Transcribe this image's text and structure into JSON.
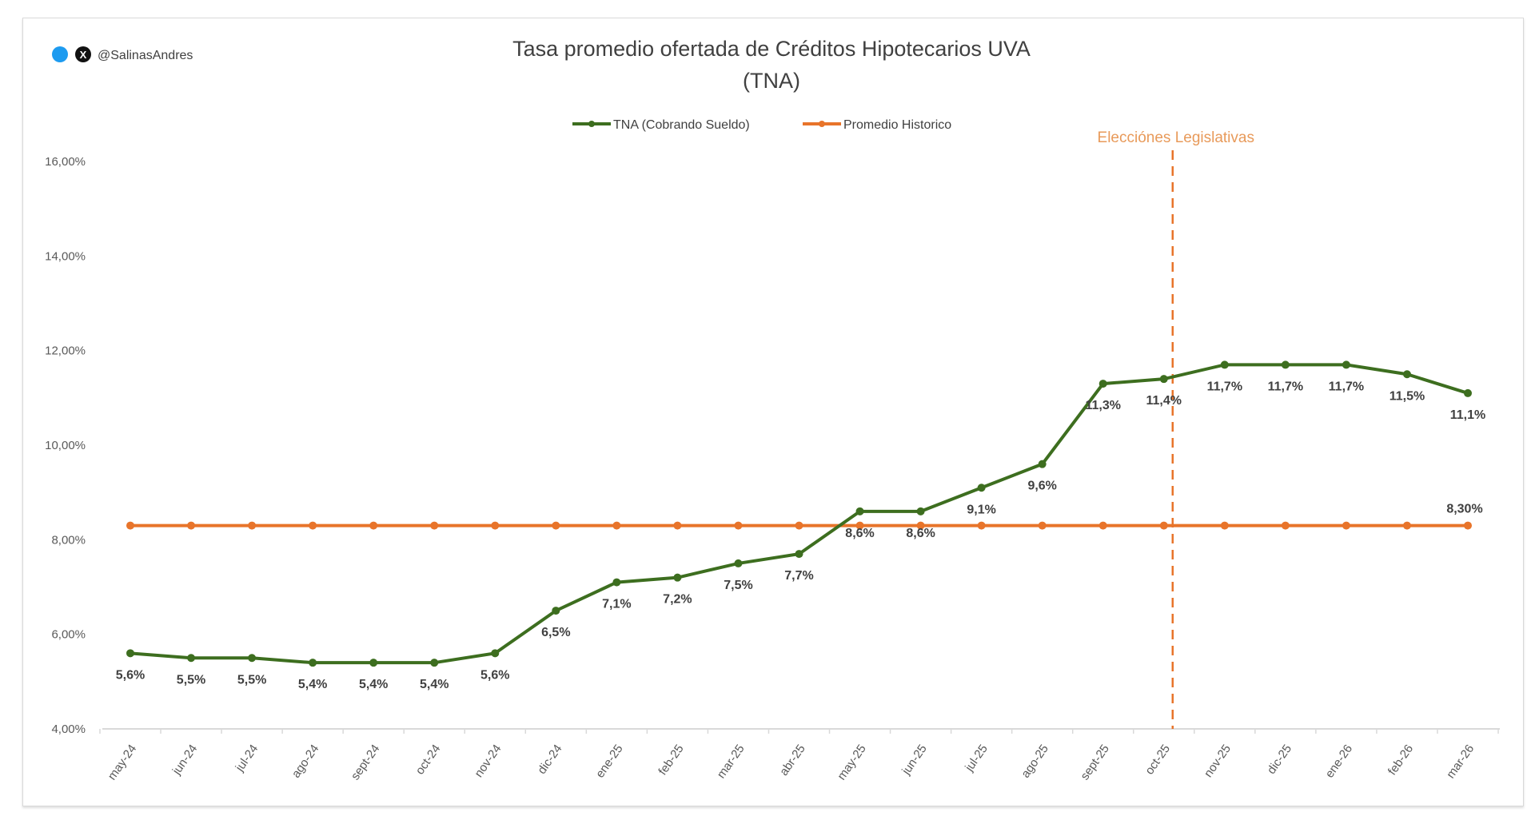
{
  "branding": {
    "handle": "@SalinasAndres",
    "icons": [
      "twitter-bird-icon",
      "x-logo-icon"
    ]
  },
  "chart_data": {
    "type": "line",
    "title": "Tasa promedio ofertada de Créditos Hipotecarios UVA",
    "subtitle": "(TNA)",
    "categories": [
      "may-24",
      "jun-24",
      "jul-24",
      "ago-24",
      "sept-24",
      "oct-24",
      "nov-24",
      "dic-24",
      "ene-25",
      "feb-25",
      "mar-25",
      "abr-25",
      "may-25",
      "jun-25",
      "jul-25",
      "ago-25",
      "sept-25",
      "oct-25",
      "nov-25",
      "dic-25",
      "ene-26",
      "feb-26",
      "mar-26"
    ],
    "series": [
      {
        "name": "TNA (Cobrando Sueldo)",
        "color": "#3d6e1f",
        "values": [
          5.6,
          5.5,
          5.5,
          5.4,
          5.4,
          5.4,
          5.6,
          6.5,
          7.1,
          7.2,
          7.5,
          7.7,
          8.6,
          8.6,
          9.1,
          9.6,
          11.3,
          11.4,
          11.7,
          11.7,
          11.7,
          11.5,
          11.1
        ],
        "data_labels": [
          "5,6%",
          "5,5%",
          "5,5%",
          "5,4%",
          "5,4%",
          "5,4%",
          "5,6%",
          "6,5%",
          "7,1%",
          "7,2%",
          "7,5%",
          "7,7%",
          "8,6%",
          "8,6%",
          "9,1%",
          "9,6%",
          "11,3%",
          "11,4%",
          "11,7%",
          "11,7%",
          "11,7%",
          "11,5%",
          "11,1%"
        ]
      },
      {
        "name": "Promedio Historico",
        "color": "#e8742a",
        "values": [
          8.3,
          8.3,
          8.3,
          8.3,
          8.3,
          8.3,
          8.3,
          8.3,
          8.3,
          8.3,
          8.3,
          8.3,
          8.3,
          8.3,
          8.3,
          8.3,
          8.3,
          8.3,
          8.3,
          8.3,
          8.3,
          8.3,
          8.3
        ],
        "end_label": "8,30%"
      }
    ],
    "ylim": [
      4,
      16
    ],
    "yticks": [
      "4,00%",
      "6,00%",
      "8,00%",
      "10,00%",
      "12,00%",
      "14,00%",
      "16,00%"
    ],
    "grid": false,
    "legend": "top-center",
    "annotation": {
      "text": "Elecciónes Legislativas",
      "at_category": "oct-25",
      "style": "vertical dashed line",
      "color": "#e8742a"
    }
  }
}
